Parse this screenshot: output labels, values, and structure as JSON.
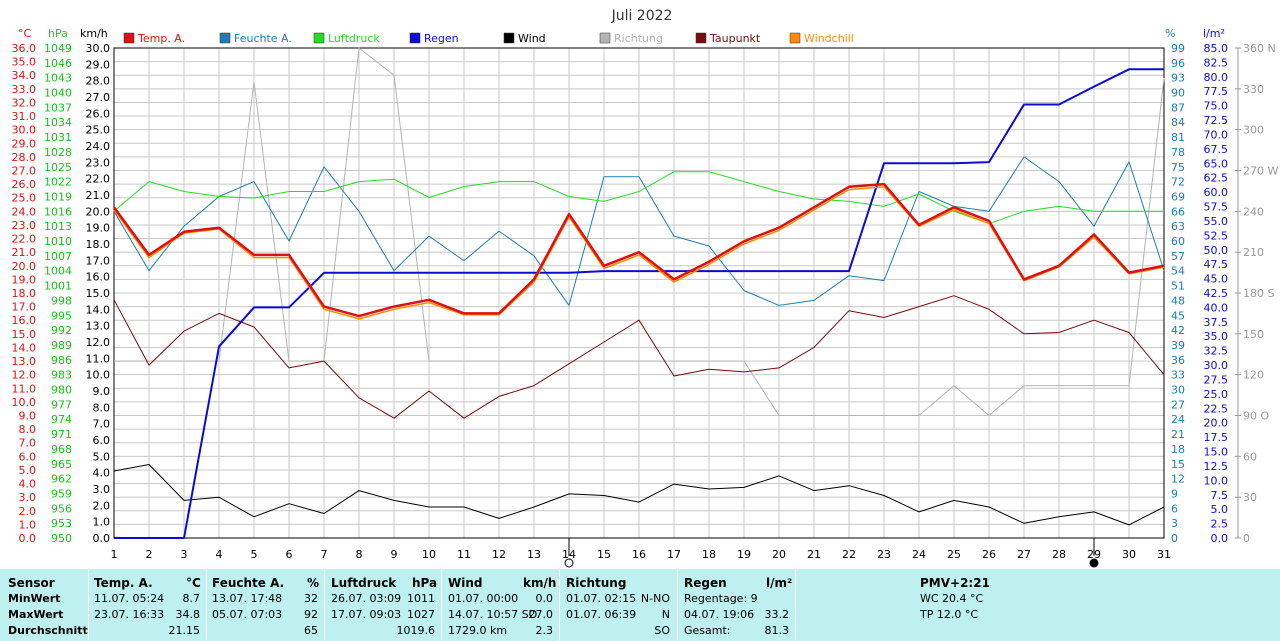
{
  "colors": {
    "temp": "#e01010",
    "humidity": "#1a80b0",
    "pressure": "#22dd22",
    "rain": "#0b0bd6",
    "wind": "#000000",
    "direction": "#b4b4b4",
    "dewpoint": "#7a0b0b",
    "windchill": "#ff8c00",
    "grid": "#c8c8c8",
    "panel_bg": "#bff0f0"
  },
  "chart_data": {
    "type": "line",
    "title": "Juli 2022",
    "x": [
      1,
      2,
      3,
      4,
      5,
      6,
      7,
      8,
      9,
      10,
      11,
      12,
      13,
      14,
      15,
      16,
      17,
      18,
      19,
      20,
      21,
      22,
      23,
      24,
      25,
      26,
      27,
      28,
      29,
      30,
      31
    ],
    "axes": {
      "temp": {
        "unit": "°C",
        "min": 0,
        "max": 36,
        "step": 1,
        "ticks_decimals": 1
      },
      "pressure": {
        "unit": "hPa",
        "min": 950,
        "max": 1049,
        "step": 3
      },
      "wind": {
        "unit": "km/h",
        "min": 0,
        "max": 30,
        "step": 1,
        "ticks_decimals": 1
      },
      "humidity": {
        "unit": "%",
        "min": 0,
        "max": 99,
        "step": 3
      },
      "rain": {
        "unit": "l/m²",
        "min": 0,
        "max": 85,
        "step": 2.5,
        "ticks_decimals": 1
      },
      "direction": {
        "unit": "",
        "min": 0,
        "max": 360,
        "step": 30,
        "labels": {
          "360": "360 N",
          "270": "270 W",
          "180": "180 S",
          "90": "90 O"
        }
      }
    },
    "series": [
      {
        "name": "Temp. A.",
        "axis": "temp",
        "color_key": "temp",
        "width": 2.5,
        "values": [
          24.3,
          20.8,
          22.5,
          22.8,
          20.8,
          20.8,
          17.0,
          16.3,
          17.0,
          17.5,
          16.5,
          16.5,
          19.0,
          23.8,
          20.0,
          21.0,
          19.0,
          20.3,
          21.8,
          22.8,
          24.3,
          25.8,
          26.0,
          23.0,
          24.3,
          23.3,
          19.0,
          20.0,
          22.3,
          19.5,
          20.0
        ]
      },
      {
        "name": "Windchill",
        "axis": "temp",
        "color_key": "windchill",
        "width": 1.5,
        "values": [
          24.1,
          20.6,
          22.4,
          22.7,
          20.6,
          20.6,
          16.8,
          16.1,
          16.8,
          17.3,
          16.4,
          16.4,
          18.8,
          23.6,
          19.8,
          20.8,
          18.8,
          20.1,
          21.6,
          22.6,
          24.1,
          25.6,
          25.8,
          22.9,
          24.1,
          23.1,
          18.9,
          19.9,
          22.1,
          19.4,
          19.9
        ]
      },
      {
        "name": "Taupunkt",
        "axis": "temp",
        "color_key": "dewpoint",
        "width": 1,
        "values": [
          17.5,
          12.7,
          15.2,
          16.5,
          15.5,
          12.5,
          13.0,
          10.3,
          8.8,
          10.8,
          8.8,
          10.4,
          11.2,
          12.8,
          14.4,
          16.0,
          11.9,
          12.4,
          12.2,
          12.5,
          14.0,
          16.7,
          16.2,
          17.0,
          17.8,
          16.8,
          15.0,
          15.1,
          16.0,
          15.1,
          12.0
        ]
      },
      {
        "name": "Feuchte A.",
        "axis": "humidity",
        "color_key": "humidity",
        "width": 1,
        "values": [
          66,
          54,
          63,
          69,
          72,
          60,
          75,
          66,
          54,
          61,
          56,
          62,
          57,
          47,
          73,
          73,
          61,
          59,
          50,
          47,
          48,
          53,
          52,
          70,
          67,
          66,
          77,
          72,
          63,
          76,
          54
        ]
      },
      {
        "name": "Luftdruck",
        "axis": "pressure",
        "color_key": "pressure",
        "width": 1,
        "values": [
          1016,
          1022,
          1020,
          1019,
          1018.7,
          1020,
          1020,
          1022,
          1022.5,
          1018.8,
          1021,
          1022,
          1022,
          1019,
          1018,
          1020,
          1024,
          1024,
          1022,
          1020,
          1018.5,
          1018,
          1017,
          1019.5,
          1016,
          1013.5,
          1016,
          1017,
          1016,
          1016,
          1016
        ]
      },
      {
        "name": "Regen",
        "axis": "rain",
        "color_key": "rain",
        "width": 2,
        "values": [
          0,
          0,
          0,
          33.2,
          40.0,
          40.0,
          46.0,
          46.0,
          46.0,
          46.0,
          46.0,
          46.0,
          46.0,
          46.0,
          46.3,
          46.3,
          46.3,
          46.3,
          46.3,
          46.3,
          46.3,
          46.3,
          65.0,
          65.0,
          65.0,
          65.2,
          75.2,
          75.2,
          78.3,
          81.3,
          81.3
        ]
      },
      {
        "name": "Wind",
        "axis": "wind",
        "color_key": "wind",
        "width": 1,
        "values": [
          4.1,
          4.5,
          2.3,
          2.5,
          1.3,
          2.1,
          1.5,
          2.9,
          2.3,
          1.9,
          1.9,
          1.2,
          1.9,
          2.7,
          2.6,
          2.2,
          3.3,
          3.0,
          3.1,
          3.8,
          2.9,
          3.2,
          2.6,
          1.6,
          2.3,
          1.9,
          0.9,
          1.3,
          1.6,
          0.8,
          1.9
        ]
      },
      {
        "name": "Richtung",
        "axis": "direction",
        "color_key": "direction",
        "width": 1,
        "values": [
          130,
          130,
          130,
          130,
          335,
          130,
          130,
          360,
          340,
          130,
          130,
          130,
          130,
          130,
          130,
          130,
          130,
          130,
          130,
          90,
          90,
          90,
          90,
          90,
          112,
          90,
          112,
          112,
          112,
          112,
          338
        ]
      }
    ],
    "legend": [
      {
        "label": "Temp. A.",
        "color_key": "temp"
      },
      {
        "label": "Feuchte A.",
        "color_key": "humidity"
      },
      {
        "label": "Luftdruck",
        "color_key": "pressure"
      },
      {
        "label": "Regen",
        "color_key": "rain"
      },
      {
        "label": "Wind",
        "color_key": "wind"
      },
      {
        "label": "Richtung",
        "color_key": "direction"
      },
      {
        "label": "Taupunkt",
        "color_key": "dewpoint"
      },
      {
        "label": "Windchill",
        "color_key": "windchill"
      }
    ],
    "legend_placement": "top",
    "grid": true,
    "moon_markers": [
      {
        "day": 14,
        "phase": "full"
      },
      {
        "day": 29,
        "phase": "new"
      }
    ]
  },
  "stats": {
    "row_labels": [
      "Sensor",
      "MinWert",
      "MaxWert",
      "Durchschnitt"
    ],
    "temp": {
      "header": "Temp. A.",
      "unit": "°C",
      "min_date": "11.07.  05:24",
      "min": "8.7",
      "max_date": "23.07.  16:33",
      "max": "34.8",
      "avg": "21.15"
    },
    "humidity": {
      "header": "Feuchte A.",
      "unit": "%",
      "min_date": "13.07.  17:48",
      "min": "32",
      "max_date": "05.07.  07:03",
      "max": "92",
      "avg": "65"
    },
    "pressure": {
      "header": "Luftdruck",
      "unit": "hPa",
      "min_date": "26.07.  03:09",
      "min": "1011",
      "max_date": "17.07.  09:03",
      "max": "1027",
      "avg": "1019.6"
    },
    "wind": {
      "header": "Wind",
      "unit": "km/h",
      "min_date": "01.07.  00:00",
      "min": "0.0",
      "max_date": "14.07.  10:57 SO",
      "max": "27.0",
      "avg_label": "1729.0 km",
      "avg": "2.3"
    },
    "direction": {
      "header": "Richtung",
      "min_date": "01.07.  02:15",
      "min": "N-NO",
      "max_date": "01.07.  06:39",
      "max": "N",
      "avg": "SO"
    },
    "rain": {
      "header": "Regen",
      "unit": "l/m²",
      "days_label": "Regentage: 9",
      "max_date": "04.07.  19:06",
      "max": "33.2",
      "total_label": "Gesamt:",
      "total": "81.3"
    },
    "pmv": {
      "header": "PMV+2:21",
      "wc": "WC 20.4 °C",
      "tp": "TP 12.0 °C"
    }
  }
}
